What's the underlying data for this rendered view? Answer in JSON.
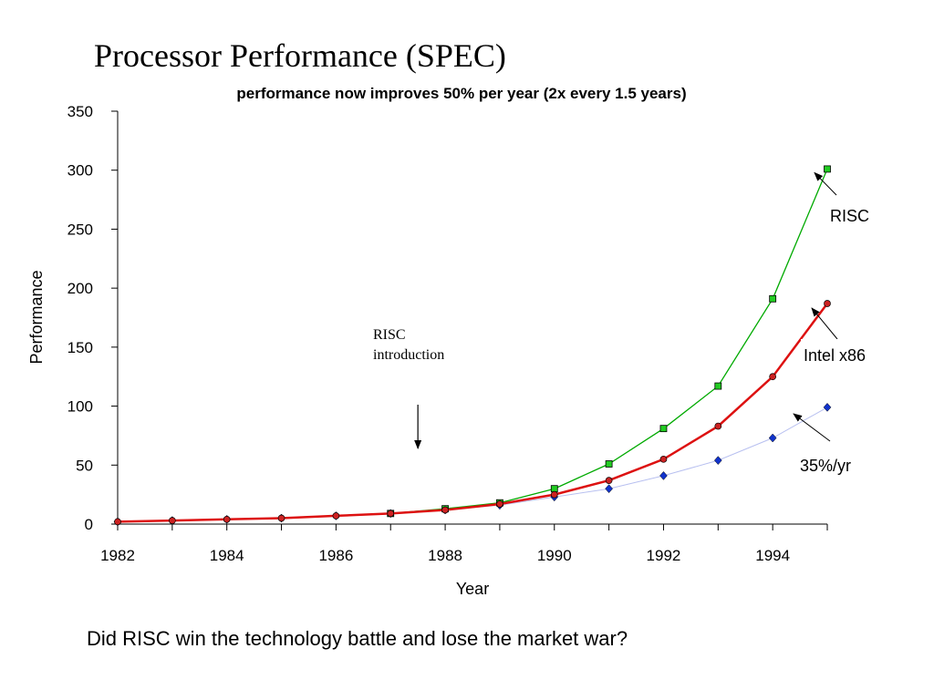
{
  "slide": {
    "title": "Processor Performance (SPEC)",
    "question": "Did RISC win the technology battle and lose the market war?"
  },
  "chart_data": {
    "type": "line",
    "subtitle": "performance now improves  50% per year (2x every 1.5 years)",
    "xlabel": "Year",
    "ylabel": "Performance",
    "xlim": [
      1982,
      1995
    ],
    "ylim": [
      0,
      350
    ],
    "x_tick_labels": [
      "1982",
      "1984",
      "1986",
      "1988",
      "1990",
      "1992",
      "1994"
    ],
    "y_tick_labels": [
      "0",
      "50",
      "100",
      "150",
      "200",
      "250",
      "300",
      "350"
    ],
    "grid": false,
    "series": [
      {
        "key": "risc",
        "color": "#00aa00",
        "marker": "square",
        "marker_color": "#22cc22",
        "points": [
          {
            "x": 1987,
            "y": 9
          },
          {
            "x": 1988,
            "y": 13
          },
          {
            "x": 1989,
            "y": 18
          },
          {
            "x": 1990,
            "y": 30
          },
          {
            "x": 1991,
            "y": 51
          },
          {
            "x": 1992,
            "y": 81
          },
          {
            "x": 1993,
            "y": 117
          },
          {
            "x": 1994,
            "y": 191
          },
          {
            "x": 1995,
            "y": 301
          }
        ]
      },
      {
        "key": "intel",
        "color": "#dd1111",
        "marker": "circle",
        "marker_color": "#cc2222",
        "points": [
          {
            "x": 1982,
            "y": 2
          },
          {
            "x": 1983,
            "y": 3
          },
          {
            "x": 1984,
            "y": 4
          },
          {
            "x": 1985,
            "y": 5
          },
          {
            "x": 1986,
            "y": 7
          },
          {
            "x": 1987,
            "y": 9
          },
          {
            "x": 1988,
            "y": 12
          },
          {
            "x": 1989,
            "y": 17
          },
          {
            "x": 1990,
            "y": 25
          },
          {
            "x": 1991,
            "y": 37
          },
          {
            "x": 1992,
            "y": 55
          },
          {
            "x": 1993,
            "y": 83
          },
          {
            "x": 1994,
            "y": 125
          },
          {
            "x": 1995,
            "y": 187
          }
        ]
      },
      {
        "key": "trend35",
        "color": "#b8c0f0",
        "marker": "diamond",
        "marker_color": "#1133cc",
        "points": [
          {
            "x": 1982,
            "y": 2
          },
          {
            "x": 1983,
            "y": 3
          },
          {
            "x": 1984,
            "y": 4
          },
          {
            "x": 1985,
            "y": 5
          },
          {
            "x": 1986,
            "y": 7
          },
          {
            "x": 1987,
            "y": 9
          },
          {
            "x": 1988,
            "y": 12
          },
          {
            "x": 1989,
            "y": 16
          },
          {
            "x": 1990,
            "y": 23
          },
          {
            "x": 1991,
            "y": 30
          },
          {
            "x": 1992,
            "y": 41
          },
          {
            "x": 1993,
            "y": 54
          },
          {
            "x": 1994,
            "y": 73
          },
          {
            "x": 1995,
            "y": 99
          }
        ]
      }
    ],
    "annotations": [
      {
        "key": "risc-label",
        "text": "RISC",
        "x": 1995,
        "y": 301
      },
      {
        "key": "intel-label",
        "text": "Intel x86",
        "x": 1995,
        "y": 187
      },
      {
        "key": "trend-label",
        "text": "35%/yr",
        "x": 1995,
        "y": 99
      },
      {
        "key": "risc-intro",
        "lines": [
          "RISC",
          "introduction"
        ],
        "x": 1987.5,
        "y": 100
      }
    ]
  }
}
